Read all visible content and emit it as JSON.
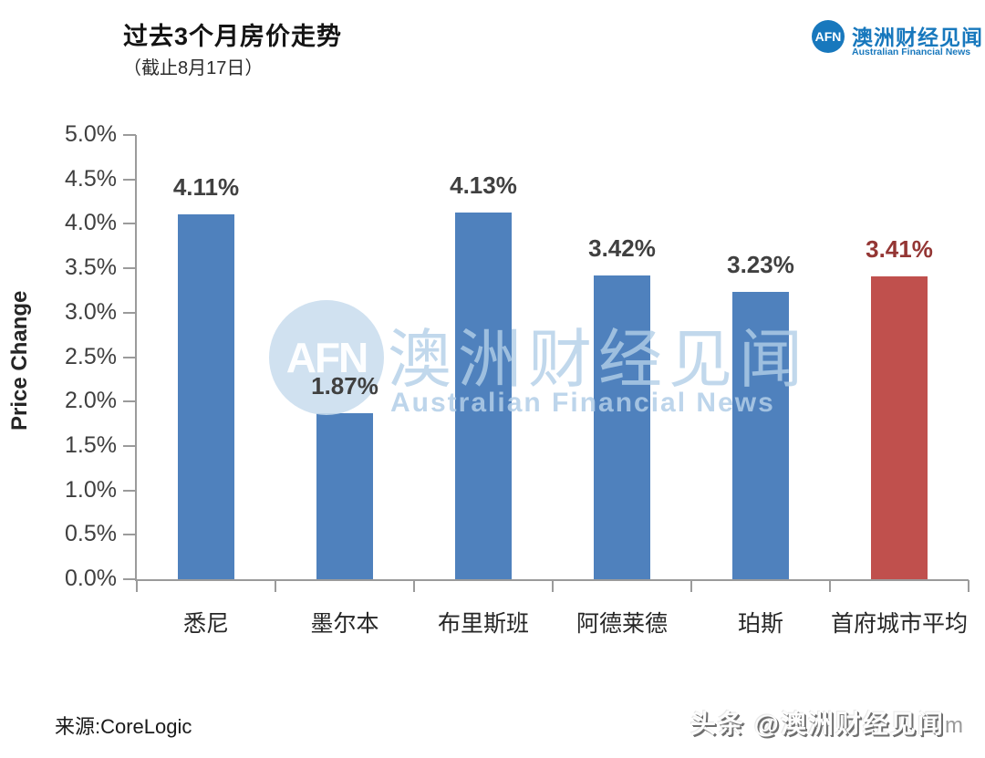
{
  "header": {
    "title": "过去3个月房价走势",
    "subtitle": "（截止8月17日）"
  },
  "logo": {
    "abbr": "AFN",
    "name_cn": "澳洲财经见闻",
    "name_en": "Australian Financial News",
    "brand_color": "#1878BD"
  },
  "watermark": {
    "abbr": "AFN",
    "name_cn": "澳洲财经见闻",
    "name_en": "Australian Financial News",
    "tint_color": "#C9DDEE"
  },
  "footer": {
    "source": "来源:CoreLogic",
    "stamp": "头条 @澳洲财经见闻",
    "stamp_tail": "m"
  },
  "chart_data": {
    "type": "bar",
    "title": "过去3个月房价走势",
    "subtitle": "（截止8月17日）",
    "categories": [
      "悉尼",
      "墨尔本",
      "布里斯班",
      "阿德莱德",
      "珀斯",
      "首府城市平均"
    ],
    "values": [
      4.11,
      1.87,
      4.13,
      3.42,
      3.23,
      3.41
    ],
    "data_labels": [
      "4.11%",
      "1.87%",
      "4.13%",
      "3.42%",
      "3.23%",
      "3.41%"
    ],
    "bar_colors": [
      "#4F81BD",
      "#4F81BD",
      "#4F81BD",
      "#4F81BD",
      "#4F81BD",
      "#C0504D"
    ],
    "label_colors": [
      "#404040",
      "#404040",
      "#404040",
      "#404040",
      "#404040",
      "#943634"
    ],
    "xlabel": "",
    "ylabel": "Price Change",
    "ylim": [
      0,
      5
    ],
    "y_tick_step": 0.5,
    "y_ticks": [
      "0.0%",
      "0.5%",
      "1.0%",
      "1.5%",
      "2.0%",
      "2.5%",
      "3.0%",
      "3.5%",
      "4.0%",
      "4.5%",
      "5.0%"
    ],
    "grid": false,
    "legend": false,
    "axis_color": "#9B9B9B"
  }
}
